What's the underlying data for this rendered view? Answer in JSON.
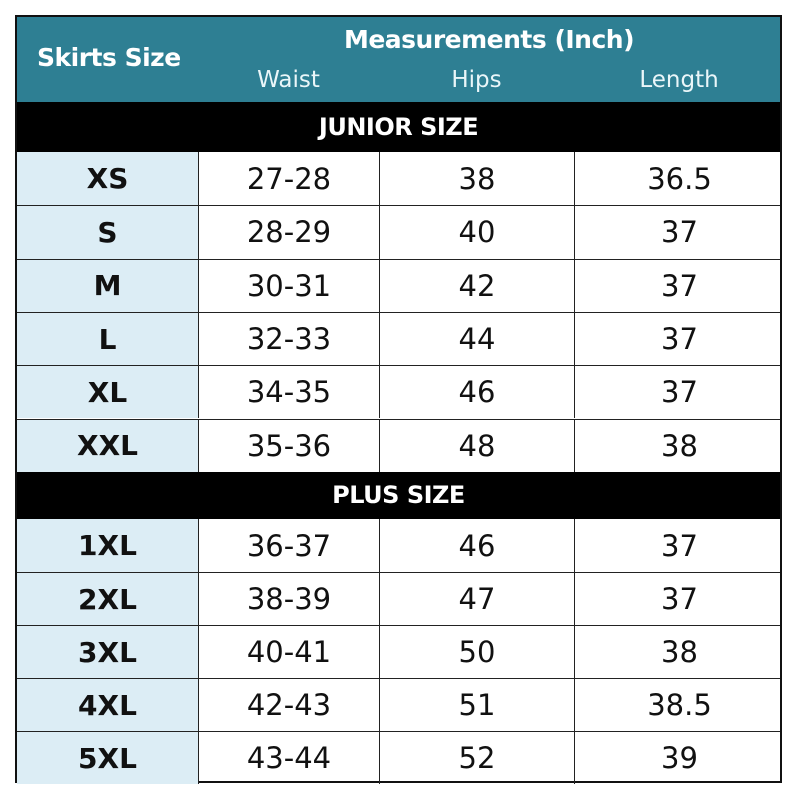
{
  "header": {
    "size_label": "Skirts Size",
    "measurements_label": "Measurements (Inch)",
    "columns": [
      "Waist",
      "Hips",
      "Length"
    ]
  },
  "colors": {
    "header": "#2e7f93",
    "size_column": "#dcedf5",
    "section_bar": "#000000"
  },
  "sections": [
    {
      "title": "JUNIOR SIZE",
      "rows": [
        {
          "size": "XS",
          "waist": "27-28",
          "hips": "38",
          "length": "36.5"
        },
        {
          "size": "S",
          "waist": "28-29",
          "hips": "40",
          "length": "37"
        },
        {
          "size": "M",
          "waist": "30-31",
          "hips": "42",
          "length": "37"
        },
        {
          "size": "L",
          "waist": "32-33",
          "hips": "44",
          "length": "37"
        },
        {
          "size": "XL",
          "waist": "34-35",
          "hips": "46",
          "length": "37"
        },
        {
          "size": "XXL",
          "waist": "35-36",
          "hips": "48",
          "length": "38"
        }
      ]
    },
    {
      "title": "PLUS SIZE",
      "rows": [
        {
          "size": "1XL",
          "waist": "36-37",
          "hips": "46",
          "length": "37"
        },
        {
          "size": "2XL",
          "waist": "38-39",
          "hips": "47",
          "length": "37"
        },
        {
          "size": "3XL",
          "waist": "40-41",
          "hips": "50",
          "length": "38"
        },
        {
          "size": "4XL",
          "waist": "42-43",
          "hips": "51",
          "length": "38.5"
        },
        {
          "size": "5XL",
          "waist": "43-44",
          "hips": "52",
          "length": "39"
        }
      ]
    }
  ]
}
